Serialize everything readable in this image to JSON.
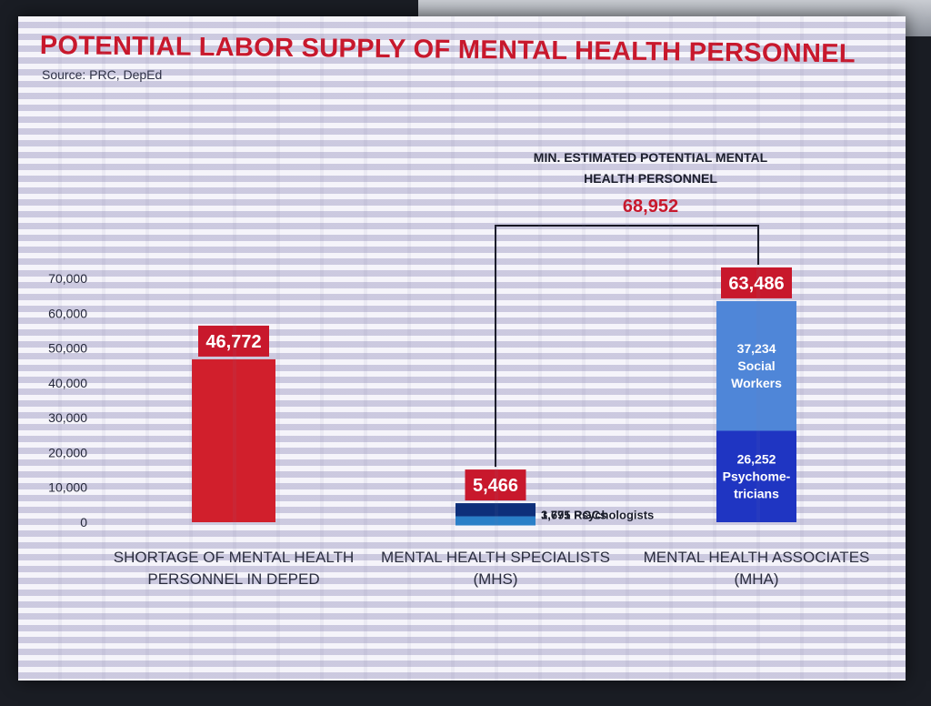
{
  "chart_data": {
    "type": "bar",
    "title": "POTENTIAL LABOR SUPPLY OF MENTAL HEALTH PERSONNEL",
    "source": "Source: PRC, DepEd",
    "ylim": [
      0,
      70000
    ],
    "y_ticks": [
      "0",
      "10,000",
      "20,000",
      "30,000",
      "40,000",
      "50,000",
      "60,000",
      "70,000"
    ],
    "y_tick_values": [
      0,
      10000,
      20000,
      30000,
      40000,
      50000,
      60000,
      70000
    ],
    "grid": false,
    "categories": [
      [
        "SHORTAGE OF MENTAL HEALTH",
        "PERSONNEL IN DEPED"
      ],
      [
        "MENTAL HEALTH SPECIALISTS",
        "(MHS)"
      ],
      [
        "MENTAL HEALTH ASSOCIATES",
        "(MHA)"
      ]
    ],
    "bars": [
      {
        "total": 46772,
        "total_label": "46,772",
        "segments": [
          {
            "value": 46772,
            "color": "#d11f2c",
            "lines": []
          }
        ]
      },
      {
        "total": 5466,
        "total_label": "5,466",
        "segments": [
          {
            "value": 1691,
            "color": "#2a7fc8",
            "side_label": "1,691 Psychologists"
          },
          {
            "value": 3775,
            "color": "#0e2f7a",
            "side_label": "3,775 RGCs"
          }
        ]
      },
      {
        "total": 63486,
        "total_label": "63,486",
        "segments": [
          {
            "value": 26252,
            "color": "#1f35c2",
            "lines": [
              "26,252",
              "Psychome-",
              "tricians"
            ]
          },
          {
            "value": 37234,
            "color": "#4f86d8",
            "lines": [
              "37,234",
              "Social",
              "Workers"
            ]
          }
        ]
      }
    ],
    "annotation": {
      "lines": [
        "MIN. ESTIMATED POTENTIAL MENTAL",
        "HEALTH PERSONNEL"
      ],
      "total": "68,952",
      "connects": [
        1,
        2
      ]
    },
    "colors": {
      "title": "#c8182c",
      "label_box": "#c8182c"
    }
  }
}
